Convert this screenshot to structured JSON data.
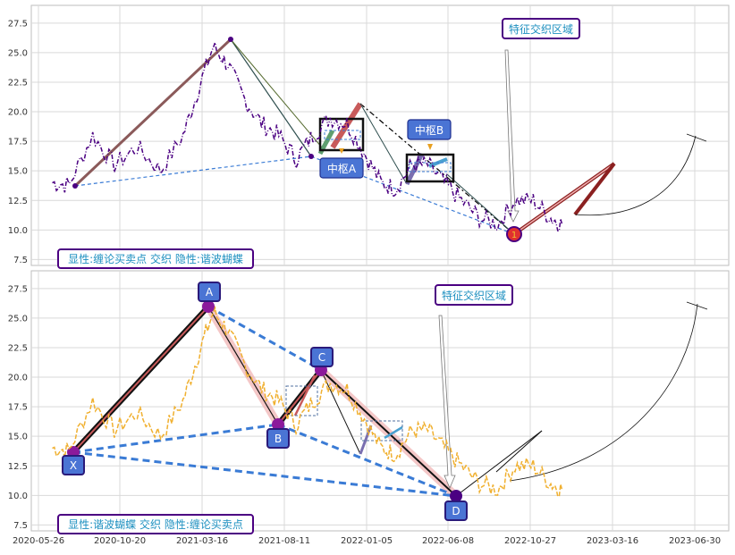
{
  "chart_data": [
    {
      "type": "line",
      "panel": "top",
      "ylim": [
        7,
        29
      ],
      "yticks": [
        "7.5",
        "10.0",
        "12.5",
        "15.0",
        "17.5",
        "20.0",
        "22.5",
        "25.0",
        "27.5"
      ],
      "series": [
        {
          "style": "dash-dot",
          "color": "#4b0082",
          "x": [
            "2020-06-20",
            "2020-07-20",
            "2020-09-01",
            "2020-10-10",
            "2020-11-20",
            "2021-01-01",
            "2021-02-10",
            "2021-03-10",
            "2021-04-05",
            "2021-05-01",
            "2021-06-01",
            "2021-07-01",
            "2021-08-01",
            "2021-09-01",
            "2021-10-01",
            "2021-11-01",
            "2021-12-01",
            "2022-01-01",
            "2022-02-01",
            "2022-03-01",
            "2022-04-01",
            "2022-05-01",
            "2022-06-01",
            "2022-07-01",
            "2022-08-01",
            "2022-09-01",
            "2022-10-01",
            "2022-11-01",
            "2022-12-01",
            "2022-12-20"
          ],
          "y": [
            14.0,
            13.8,
            18.0,
            15.5,
            17.0,
            15.0,
            18.0,
            22.0,
            25.5,
            24.0,
            21.0,
            19.0,
            18.0,
            16.0,
            18.0,
            19.5,
            19.0,
            16.5,
            14.0,
            13.5,
            15.5,
            15.5,
            14.0,
            12.5,
            11.0,
            10.5,
            12.5,
            12.5,
            11.0,
            10.5
          ]
        }
      ],
      "overlays": [
        {
          "name": "price-label-highlight",
          "color": "#e8a020",
          "x": [
            "2022-09-20",
            "2022-09-20"
          ],
          "y": [
            9.6,
            9.6
          ]
        }
      ],
      "annotations": [
        {
          "text": "特征交织区域"
        },
        {
          "text": "中枢B"
        },
        {
          "text": "中枢A"
        },
        {
          "text": "显性:缠论买卖点 交织 隐性:谐波蝴蝶"
        },
        {
          "text": "1"
        }
      ]
    },
    {
      "type": "line",
      "panel": "bottom",
      "ylim": [
        7,
        29
      ],
      "yticks": [
        "7.5",
        "10.0",
        "12.5",
        "15.0",
        "17.5",
        "20.0",
        "22.5",
        "25.0",
        "27.5"
      ],
      "xticks": [
        "2020-05-26",
        "2020-10-20",
        "2021-03-16",
        "2021-08-11",
        "2022-01-05",
        "2022-06-08",
        "2022-10-27",
        "2023-03-16",
        "2023-06-30"
      ],
      "series": [
        {
          "style": "dashed",
          "color": "#f0b030",
          "x": [
            "2020-06-20",
            "2020-07-20",
            "2020-09-01",
            "2020-10-10",
            "2020-11-20",
            "2021-01-01",
            "2021-02-10",
            "2021-03-10",
            "2021-04-05",
            "2021-05-01",
            "2021-06-01",
            "2021-07-01",
            "2021-08-01",
            "2021-09-01",
            "2021-10-01",
            "2021-11-01",
            "2021-12-01",
            "2022-01-01",
            "2022-02-01",
            "2022-03-01",
            "2022-04-01",
            "2022-05-01",
            "2022-06-01",
            "2022-07-01",
            "2022-08-01",
            "2022-09-01",
            "2022-10-01",
            "2022-11-01",
            "2022-12-01",
            "2022-12-20"
          ],
          "y": [
            14.0,
            13.8,
            18.0,
            15.5,
            17.0,
            15.0,
            18.0,
            22.0,
            25.5,
            24.0,
            21.0,
            19.0,
            18.0,
            16.0,
            18.0,
            19.5,
            19.0,
            16.5,
            14.0,
            13.5,
            15.5,
            15.5,
            14.0,
            12.5,
            11.0,
            10.5,
            12.5,
            12.5,
            11.0,
            10.5
          ]
        }
      ],
      "points": [
        {
          "label": "X",
          "x": "2020-06-20",
          "y": 13.5
        },
        {
          "label": "A",
          "x": "2021-03-16",
          "y": 26.0
        },
        {
          "label": "B",
          "x": "2021-08-11",
          "y": 16.0
        },
        {
          "label": "C",
          "x": "2021-11-01",
          "y": 20.5
        },
        {
          "label": "D",
          "x": "2022-06-08",
          "y": 10.0
        }
      ],
      "annotations": [
        {
          "text": "特征交织区域"
        },
        {
          "text": "显性:谐波蝴蝶 交织 隐性:缠论买卖点"
        }
      ]
    }
  ]
}
